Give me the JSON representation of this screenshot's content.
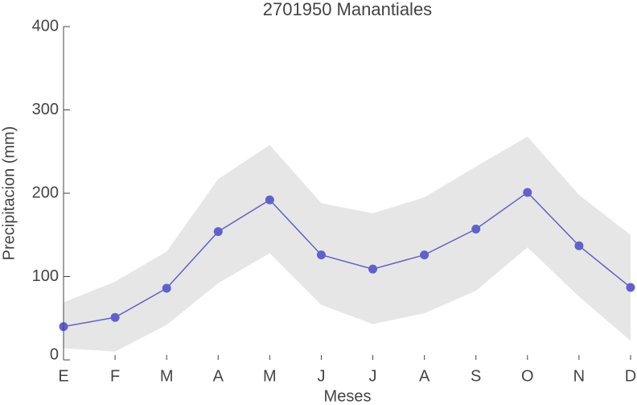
{
  "chart_data": {
    "type": "line",
    "title": "2701950 Manantiales",
    "xlabel": "Meses",
    "ylabel": "Precipitacion (mm)",
    "categories": [
      "E",
      "F",
      "M",
      "A",
      "M",
      "J",
      "J",
      "A",
      "S",
      "O",
      "N",
      "D"
    ],
    "values": [
      40,
      51,
      86,
      154,
      192,
      126,
      109,
      126,
      157,
      201,
      137,
      87
    ],
    "color": "#6161cc",
    "band": {
      "upper": [
        69,
        94,
        130,
        217,
        258,
        188,
        176,
        195,
        232,
        268,
        198,
        150
      ],
      "lower": [
        14,
        10,
        42,
        92,
        128,
        66,
        43,
        56,
        83,
        135,
        76,
        23
      ],
      "color": "#e6e6e6"
    },
    "ylim": [
      0,
      400
    ],
    "yticks": [
      0,
      100,
      200,
      300,
      400
    ]
  }
}
